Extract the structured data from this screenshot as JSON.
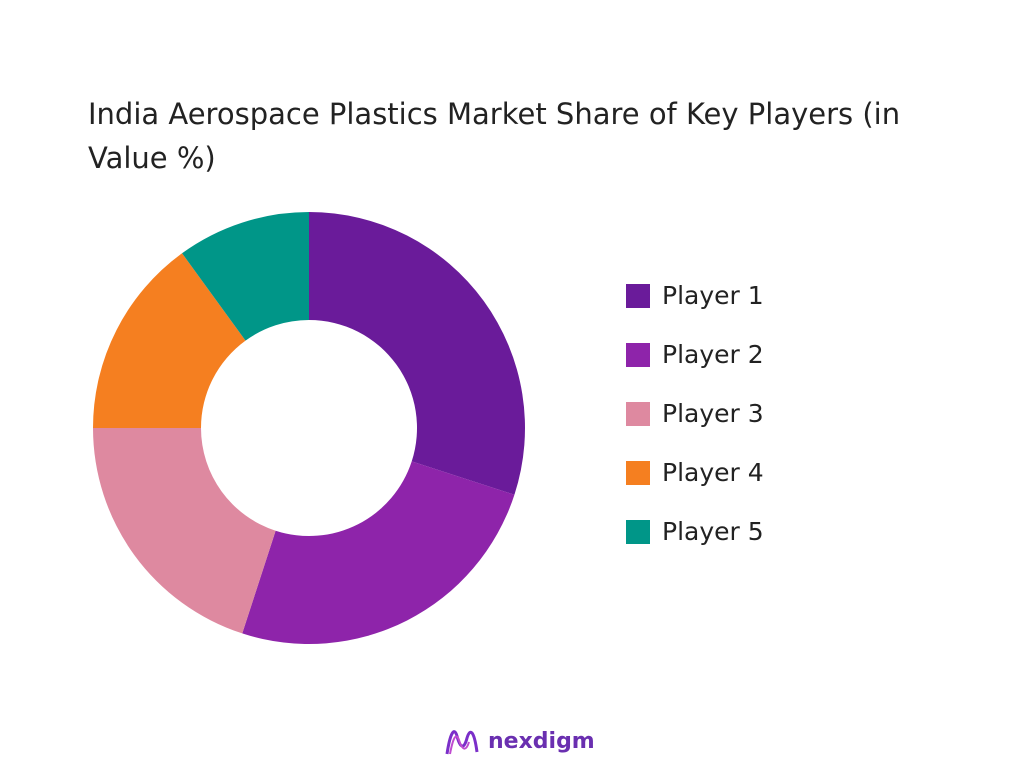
{
  "chart_data": {
    "type": "pie",
    "donut": true,
    "title": "India Aerospace Plastics Market Share of Key Players (in Value %)",
    "categories": [
      "Player 1",
      "Player 2",
      "Player 3",
      "Player 4",
      "Player 5"
    ],
    "values": [
      30,
      25,
      20,
      15,
      10
    ],
    "colors": [
      "#6a1b9a",
      "#8e24aa",
      "#de89a0",
      "#f57f20",
      "#009688"
    ],
    "legend_position": "right"
  },
  "logo": {
    "text": "nexdigm"
  }
}
